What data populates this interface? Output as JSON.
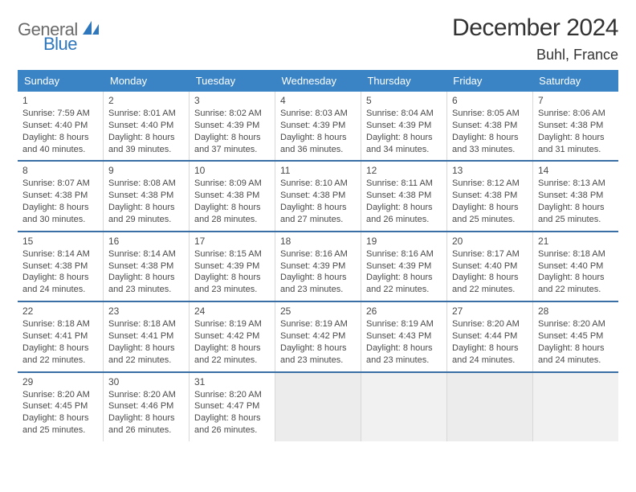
{
  "logo": {
    "word1": "General",
    "word2": "Blue"
  },
  "title": "December 2024",
  "location": "Buhl, France",
  "colors": {
    "header_bg": "#3a84c6",
    "header_text": "#ffffff",
    "rule": "#3a6fa6",
    "cell_border": "#d8d8d8",
    "empty_bg": "#f1f1f1",
    "text": "#4a4a4a",
    "logo_gray": "#6a6a6a",
    "logo_blue": "#2f77bc"
  },
  "dow": [
    "Sunday",
    "Monday",
    "Tuesday",
    "Wednesday",
    "Thursday",
    "Friday",
    "Saturday"
  ],
  "weeks": [
    [
      {
        "n": "1",
        "sr": "Sunrise: 7:59 AM",
        "ss": "Sunset: 4:40 PM",
        "d1": "Daylight: 8 hours",
        "d2": "and 40 minutes."
      },
      {
        "n": "2",
        "sr": "Sunrise: 8:01 AM",
        "ss": "Sunset: 4:40 PM",
        "d1": "Daylight: 8 hours",
        "d2": "and 39 minutes."
      },
      {
        "n": "3",
        "sr": "Sunrise: 8:02 AM",
        "ss": "Sunset: 4:39 PM",
        "d1": "Daylight: 8 hours",
        "d2": "and 37 minutes."
      },
      {
        "n": "4",
        "sr": "Sunrise: 8:03 AM",
        "ss": "Sunset: 4:39 PM",
        "d1": "Daylight: 8 hours",
        "d2": "and 36 minutes."
      },
      {
        "n": "5",
        "sr": "Sunrise: 8:04 AM",
        "ss": "Sunset: 4:39 PM",
        "d1": "Daylight: 8 hours",
        "d2": "and 34 minutes."
      },
      {
        "n": "6",
        "sr": "Sunrise: 8:05 AM",
        "ss": "Sunset: 4:38 PM",
        "d1": "Daylight: 8 hours",
        "d2": "and 33 minutes."
      },
      {
        "n": "7",
        "sr": "Sunrise: 8:06 AM",
        "ss": "Sunset: 4:38 PM",
        "d1": "Daylight: 8 hours",
        "d2": "and 31 minutes."
      }
    ],
    [
      {
        "n": "8",
        "sr": "Sunrise: 8:07 AM",
        "ss": "Sunset: 4:38 PM",
        "d1": "Daylight: 8 hours",
        "d2": "and 30 minutes."
      },
      {
        "n": "9",
        "sr": "Sunrise: 8:08 AM",
        "ss": "Sunset: 4:38 PM",
        "d1": "Daylight: 8 hours",
        "d2": "and 29 minutes."
      },
      {
        "n": "10",
        "sr": "Sunrise: 8:09 AM",
        "ss": "Sunset: 4:38 PM",
        "d1": "Daylight: 8 hours",
        "d2": "and 28 minutes."
      },
      {
        "n": "11",
        "sr": "Sunrise: 8:10 AM",
        "ss": "Sunset: 4:38 PM",
        "d1": "Daylight: 8 hours",
        "d2": "and 27 minutes."
      },
      {
        "n": "12",
        "sr": "Sunrise: 8:11 AM",
        "ss": "Sunset: 4:38 PM",
        "d1": "Daylight: 8 hours",
        "d2": "and 26 minutes."
      },
      {
        "n": "13",
        "sr": "Sunrise: 8:12 AM",
        "ss": "Sunset: 4:38 PM",
        "d1": "Daylight: 8 hours",
        "d2": "and 25 minutes."
      },
      {
        "n": "14",
        "sr": "Sunrise: 8:13 AM",
        "ss": "Sunset: 4:38 PM",
        "d1": "Daylight: 8 hours",
        "d2": "and 25 minutes."
      }
    ],
    [
      {
        "n": "15",
        "sr": "Sunrise: 8:14 AM",
        "ss": "Sunset: 4:38 PM",
        "d1": "Daylight: 8 hours",
        "d2": "and 24 minutes."
      },
      {
        "n": "16",
        "sr": "Sunrise: 8:14 AM",
        "ss": "Sunset: 4:38 PM",
        "d1": "Daylight: 8 hours",
        "d2": "and 23 minutes."
      },
      {
        "n": "17",
        "sr": "Sunrise: 8:15 AM",
        "ss": "Sunset: 4:39 PM",
        "d1": "Daylight: 8 hours",
        "d2": "and 23 minutes."
      },
      {
        "n": "18",
        "sr": "Sunrise: 8:16 AM",
        "ss": "Sunset: 4:39 PM",
        "d1": "Daylight: 8 hours",
        "d2": "and 23 minutes."
      },
      {
        "n": "19",
        "sr": "Sunrise: 8:16 AM",
        "ss": "Sunset: 4:39 PM",
        "d1": "Daylight: 8 hours",
        "d2": "and 22 minutes."
      },
      {
        "n": "20",
        "sr": "Sunrise: 8:17 AM",
        "ss": "Sunset: 4:40 PM",
        "d1": "Daylight: 8 hours",
        "d2": "and 22 minutes."
      },
      {
        "n": "21",
        "sr": "Sunrise: 8:18 AM",
        "ss": "Sunset: 4:40 PM",
        "d1": "Daylight: 8 hours",
        "d2": "and 22 minutes."
      }
    ],
    [
      {
        "n": "22",
        "sr": "Sunrise: 8:18 AM",
        "ss": "Sunset: 4:41 PM",
        "d1": "Daylight: 8 hours",
        "d2": "and 22 minutes."
      },
      {
        "n": "23",
        "sr": "Sunrise: 8:18 AM",
        "ss": "Sunset: 4:41 PM",
        "d1": "Daylight: 8 hours",
        "d2": "and 22 minutes."
      },
      {
        "n": "24",
        "sr": "Sunrise: 8:19 AM",
        "ss": "Sunset: 4:42 PM",
        "d1": "Daylight: 8 hours",
        "d2": "and 22 minutes."
      },
      {
        "n": "25",
        "sr": "Sunrise: 8:19 AM",
        "ss": "Sunset: 4:42 PM",
        "d1": "Daylight: 8 hours",
        "d2": "and 23 minutes."
      },
      {
        "n": "26",
        "sr": "Sunrise: 8:19 AM",
        "ss": "Sunset: 4:43 PM",
        "d1": "Daylight: 8 hours",
        "d2": "and 23 minutes."
      },
      {
        "n": "27",
        "sr": "Sunrise: 8:20 AM",
        "ss": "Sunset: 4:44 PM",
        "d1": "Daylight: 8 hours",
        "d2": "and 24 minutes."
      },
      {
        "n": "28",
        "sr": "Sunrise: 8:20 AM",
        "ss": "Sunset: 4:45 PM",
        "d1": "Daylight: 8 hours",
        "d2": "and 24 minutes."
      }
    ],
    [
      {
        "n": "29",
        "sr": "Sunrise: 8:20 AM",
        "ss": "Sunset: 4:45 PM",
        "d1": "Daylight: 8 hours",
        "d2": "and 25 minutes."
      },
      {
        "n": "30",
        "sr": "Sunrise: 8:20 AM",
        "ss": "Sunset: 4:46 PM",
        "d1": "Daylight: 8 hours",
        "d2": "and 26 minutes."
      },
      {
        "n": "31",
        "sr": "Sunrise: 8:20 AM",
        "ss": "Sunset: 4:47 PM",
        "d1": "Daylight: 8 hours",
        "d2": "and 26 minutes."
      },
      null,
      null,
      null,
      null
    ]
  ]
}
